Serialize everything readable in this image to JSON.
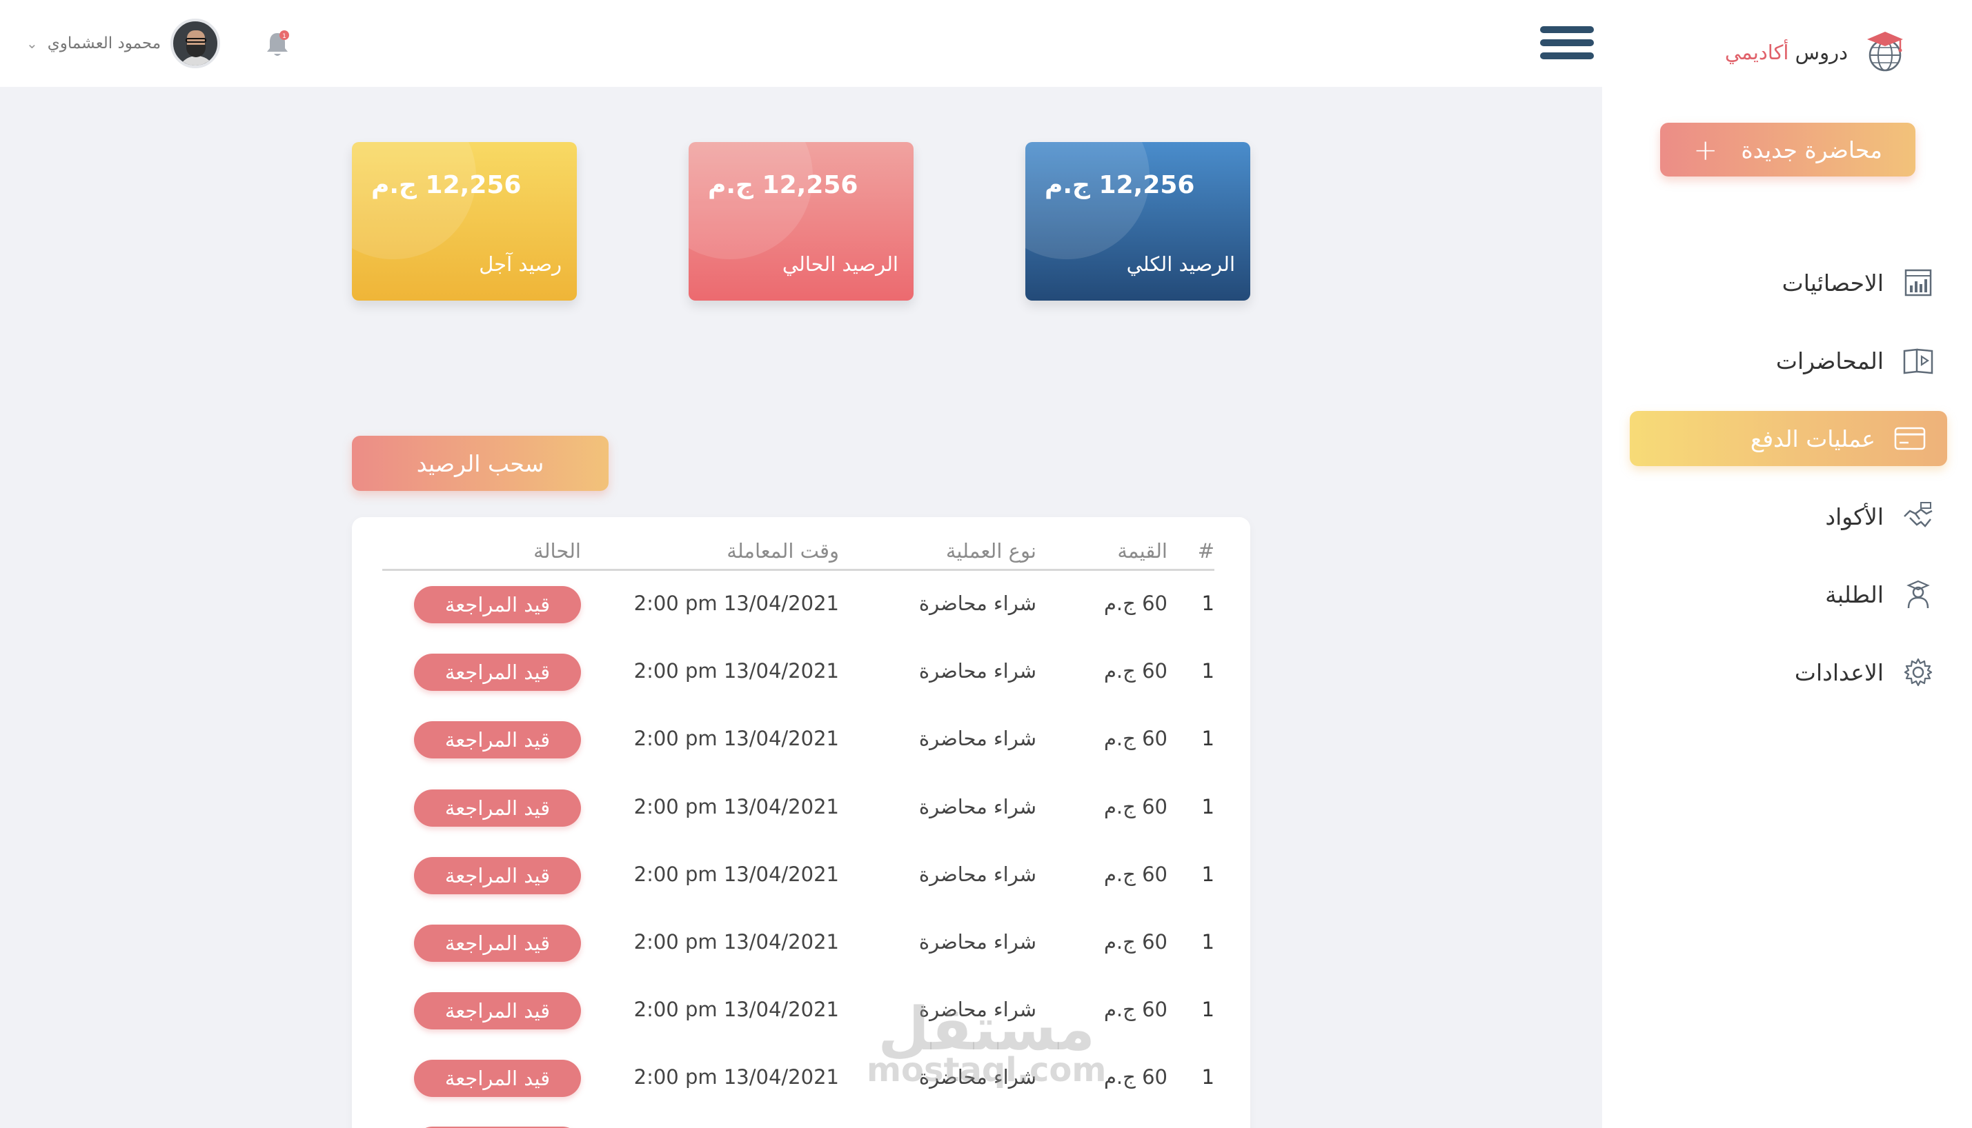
{
  "header": {
    "user_name": "محمود العشماوي",
    "notification_count": "1"
  },
  "sidebar": {
    "logo": {
      "part1": "دروس",
      "part2": "أكاديمي"
    },
    "new_lecture_button": "محاضرة جديدة",
    "items": [
      {
        "label": "الاحصائيات",
        "icon": "statistics-chart-icon",
        "active": false
      },
      {
        "label": "المحاضرات",
        "icon": "lecture-book-icon",
        "active": false
      },
      {
        "label": "عمليات الدفع",
        "icon": "credit-card-icon",
        "active": true
      },
      {
        "label": "الأكواد",
        "icon": "handshake-codes-icon",
        "active": false
      },
      {
        "label": "الطلبة",
        "icon": "student-icon",
        "active": false
      },
      {
        "label": "الاعدادات",
        "icon": "gear-icon",
        "active": false
      }
    ],
    "colors": {
      "accent_gradient_start": "#ec8d87",
      "accent_gradient_end": "#f2c27a",
      "active_item": "#f7db77"
    }
  },
  "cards": [
    {
      "amount": "12,256 ج.م",
      "label": "رصيد آجل",
      "color": "#efb538"
    },
    {
      "amount": "12,256 ج.م",
      "label": "الرصيد الحالي",
      "color": "#ec6a6f"
    },
    {
      "amount": "12,256 ج.م",
      "label": "الرصيد الكلي",
      "color": "#234a78"
    }
  ],
  "withdraw_button": "سحب الرصيد",
  "table": {
    "headers": {
      "num": "#",
      "value": "القيمة",
      "type": "نوع العملية",
      "time": "وقت المعاملة",
      "status": "الحالة"
    },
    "rows": [
      {
        "num": "1",
        "value": "60 ج.م",
        "type": "شراء محاضرة",
        "time": "2:00 pm 13/04/2021",
        "status": "قيد المراجعة"
      },
      {
        "num": "1",
        "value": "60 ج.م",
        "type": "شراء محاضرة",
        "time": "2:00 pm 13/04/2021",
        "status": "قيد المراجعة"
      },
      {
        "num": "1",
        "value": "60 ج.م",
        "type": "شراء محاضرة",
        "time": "2:00 pm 13/04/2021",
        "status": "قيد المراجعة"
      },
      {
        "num": "1",
        "value": "60 ج.م",
        "type": "شراء محاضرة",
        "time": "2:00 pm 13/04/2021",
        "status": "قيد المراجعة"
      },
      {
        "num": "1",
        "value": "60 ج.م",
        "type": "شراء محاضرة",
        "time": "2:00 pm 13/04/2021",
        "status": "قيد المراجعة"
      },
      {
        "num": "1",
        "value": "60 ج.م",
        "type": "شراء محاضرة",
        "time": "2:00 pm 13/04/2021",
        "status": "قيد المراجعة"
      },
      {
        "num": "1",
        "value": "60 ج.م",
        "type": "شراء محاضرة",
        "time": "2:00 pm 13/04/2021",
        "status": "قيد المراجعة"
      },
      {
        "num": "1",
        "value": "60 ج.م",
        "type": "شراء محاضرة",
        "time": "2:00 pm 13/04/2021",
        "status": "قيد المراجعة"
      }
    ]
  },
  "watermark": {
    "arabic": "مستقل",
    "latin": "mostaql.com"
  }
}
